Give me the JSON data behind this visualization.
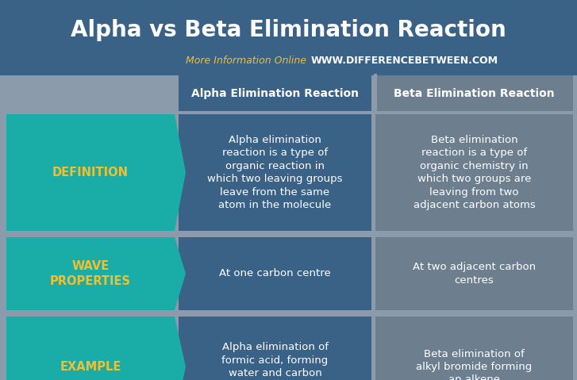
{
  "title": "Alpha vs Beta Elimination Reaction",
  "subtitle_left": "More Information Online",
  "subtitle_right": "WWW.DIFFERENCEBETWEEN.COM",
  "col_headers": [
    "Alpha Elimination Reaction",
    "Beta Elimination Reaction"
  ],
  "row_labels": [
    "DEFINITION",
    "WAVE\nPROPERTIES",
    "EXAMPLE"
  ],
  "alpha_col": [
    "Alpha elimination\nreaction is a type of\norganic reaction in\nwhich two leaving groups\nleave from the same\natom in the molecule",
    "At one carbon centre",
    "Alpha elimination of\nformic acid, forming\nwater and carbon\nmonoxide"
  ],
  "beta_col": [
    "Beta elimination\nreaction is a type of\norganic chemistry in\nwhich two groups are\nleaving from two\nadjacent carbon atoms",
    "At two adjacent carbon\ncentres",
    "Beta elimination of\nalkyl bromide forming\nan alkene"
  ],
  "bg_color": "#8c9bab",
  "header_bg": "#3a6186",
  "header_text_color": "#ffffff",
  "col1_bg": "#3a6186",
  "col2_bg": "#6d7f8f",
  "arrow_bg": "#1aada8",
  "arrow_text_color": "#f0c030",
  "title_color": "#ffffff",
  "subtitle_left_color": "#f0c030",
  "subtitle_right_color": "#ffffff",
  "col_text_color": "#ffffff",
  "row_label_fontsize": 10.5,
  "col_header_fontsize": 10,
  "cell_text_fontsize": 9.5,
  "title_fontsize": 20,
  "subtitle_fontsize": 9
}
